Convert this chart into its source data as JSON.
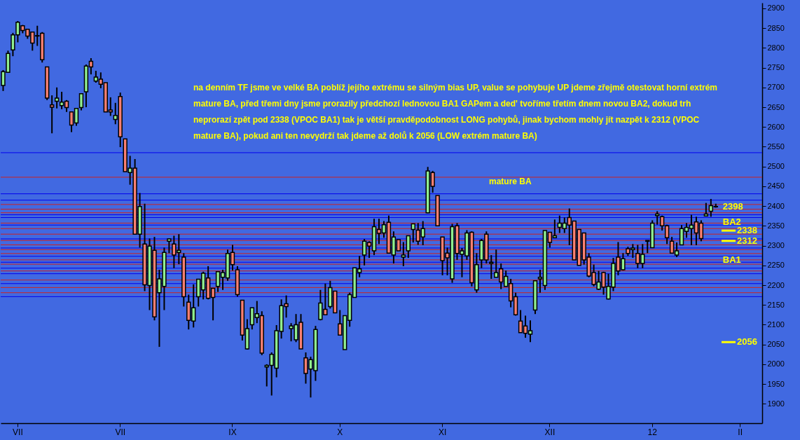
{
  "chart_data": {
    "type": "candlestick",
    "categories": [
      null,
      null,
      null,
      "VII",
      null,
      null,
      null,
      null,
      null,
      null,
      null,
      null,
      null,
      null,
      null,
      null,
      null,
      null,
      null,
      null,
      null,
      null,
      null,
      null,
      "VII",
      null,
      null,
      null,
      null,
      null,
      null,
      null,
      null,
      null,
      null,
      null,
      null,
      null,
      null,
      null,
      null,
      null,
      null,
      null,
      null,
      null,
      null,
      "IX",
      null,
      null,
      null,
      null,
      null,
      null,
      null,
      null,
      null,
      null,
      null,
      null,
      null,
      null,
      null,
      null,
      null,
      null,
      null,
      null,
      null,
      "X",
      null,
      null,
      null,
      null,
      null,
      null,
      null,
      null,
      null,
      null,
      null,
      null,
      null,
      null,
      null,
      null,
      null,
      null,
      null,
      null,
      "XI",
      null,
      null,
      null,
      null,
      null,
      null,
      null,
      null,
      null,
      null,
      null,
      null,
      null,
      null,
      null,
      null,
      null,
      null,
      null,
      null,
      null,
      "XII",
      null,
      null,
      null,
      null,
      null,
      null,
      null,
      null,
      null,
      null,
      null,
      null,
      null,
      null,
      null,
      null,
      null,
      null,
      null,
      null,
      "12",
      null,
      null,
      null,
      null,
      null,
      null,
      null,
      null,
      null,
      null,
      null,
      null,
      null,
      null,
      null,
      null,
      null,
      "II",
      null,
      null,
      null,
      null
    ],
    "ohlc": [
      [
        2705,
        2744,
        2691,
        2740
      ],
      [
        2738,
        2793,
        2738,
        2786
      ],
      [
        2795,
        2838,
        2779,
        2833
      ],
      [
        2833,
        2868,
        2814,
        2865
      ],
      [
        2856,
        2858,
        2837,
        2844
      ],
      [
        2847,
        2847,
        2823,
        2830
      ],
      [
        2840,
        2840,
        2793,
        2812
      ],
      [
        2831,
        2856,
        2805,
        2830
      ],
      [
        2837,
        2840,
        2763,
        2770
      ],
      [
        2752,
        2752,
        2668,
        2673
      ],
      [
        2656,
        2680,
        2584,
        2650
      ],
      [
        2665,
        2700,
        2647,
        2673
      ],
      [
        2654,
        2689,
        2645,
        2663
      ],
      [
        2665,
        2668,
        2638,
        2649
      ],
      [
        2638,
        2638,
        2587,
        2605
      ],
      [
        2610,
        2647,
        2603,
        2647
      ],
      [
        2649,
        2684,
        2642,
        2684
      ],
      [
        2689,
        2758,
        2650,
        2754
      ],
      [
        2766,
        2774,
        2733,
        2752
      ],
      [
        2716,
        2742,
        2712,
        2726
      ],
      [
        2721,
        2738,
        2698,
        2708
      ],
      [
        2712,
        2712,
        2638,
        2638
      ],
      [
        2643,
        2675,
        2628,
        2638
      ],
      [
        2619,
        2661,
        2607,
        2629
      ],
      [
        2677,
        2687,
        2549,
        2575
      ],
      [
        2570,
        2570,
        2487,
        2487
      ],
      [
        2485,
        2527,
        2454,
        2496
      ],
      [
        2496,
        2519,
        2329,
        2329
      ],
      [
        2329,
        2433,
        2295,
        2399
      ],
      [
        2304,
        2406,
        2185,
        2201
      ],
      [
        2199,
        2318,
        2137,
        2299
      ],
      [
        2288,
        2322,
        2111,
        2120
      ],
      [
        2181,
        2239,
        2044,
        2216
      ],
      [
        2197,
        2295,
        2137,
        2283
      ],
      [
        2311,
        2318,
        2281,
        2317
      ],
      [
        2304,
        2325,
        2243,
        2276
      ],
      [
        2283,
        2329,
        2253,
        2288
      ],
      [
        2271,
        2281,
        2146,
        2171
      ],
      [
        2157,
        2176,
        2088,
        2111
      ],
      [
        2109,
        2202,
        2093,
        2143
      ],
      [
        2171,
        2215,
        2146,
        2215
      ],
      [
        2188,
        2234,
        2164,
        2230
      ],
      [
        2218,
        2248,
        2164,
        2167
      ],
      [
        2192,
        2192,
        2111,
        2169
      ],
      [
        2197,
        2234,
        2183,
        2234
      ],
      [
        2220,
        2239,
        2188,
        2232
      ],
      [
        2218,
        2290,
        2211,
        2280
      ],
      [
        2283,
        2302,
        2237,
        2252
      ],
      [
        2239,
        2248,
        2171,
        2176
      ],
      [
        2162,
        2162,
        2060,
        2074
      ],
      [
        2039,
        2114,
        2037,
        2090
      ],
      [
        2100,
        2143,
        2088,
        2143
      ],
      [
        2118,
        2160,
        2104,
        2128
      ],
      [
        2123,
        2134,
        2023,
        2028
      ],
      [
        1993,
        2000,
        1944,
        1997
      ],
      [
        1997,
        2030,
        1921,
        2025
      ],
      [
        1990,
        2099,
        1967,
        2085
      ],
      [
        2083,
        2164,
        2065,
        2148
      ],
      [
        2153,
        2174,
        2118,
        2146
      ],
      [
        2090,
        2104,
        2058,
        2097
      ],
      [
        2062,
        2127,
        2056,
        2100
      ],
      [
        2106,
        2127,
        2039,
        2039
      ],
      [
        2016,
        2030,
        1951,
        1977
      ],
      [
        1988,
        2019,
        1916,
        2012
      ],
      [
        1984,
        2097,
        1958,
        2088
      ],
      [
        2113,
        2188,
        2111,
        2155
      ],
      [
        2139,
        2204,
        2125,
        2125
      ],
      [
        2146,
        2211,
        2141,
        2194
      ],
      [
        2185,
        2185,
        2130,
        2130
      ],
      [
        2102,
        2137,
        2074,
        2074
      ],
      [
        2037,
        2123,
        2037,
        2123
      ],
      [
        2111,
        2181,
        2095,
        2176
      ],
      [
        2169,
        2244,
        2169,
        2244
      ],
      [
        2232,
        2274,
        2220,
        2241
      ],
      [
        2276,
        2317,
        2250,
        2311
      ],
      [
        2308,
        2311,
        2269,
        2299
      ],
      [
        2287,
        2368,
        2276,
        2348
      ],
      [
        2341,
        2368,
        2304,
        2331
      ],
      [
        2332,
        2362,
        2320,
        2353
      ],
      [
        2359,
        2376,
        2281,
        2281
      ],
      [
        2276,
        2336,
        2255,
        2322
      ],
      [
        2315,
        2315,
        2287,
        2287
      ],
      [
        2271,
        2309,
        2248,
        2276
      ],
      [
        2287,
        2325,
        2269,
        2325
      ],
      [
        2341,
        2355,
        2308,
        2355
      ],
      [
        2339,
        2357,
        2302,
        2311
      ],
      [
        2322,
        2362,
        2301,
        2343
      ],
      [
        2383,
        2499,
        2382,
        2489
      ],
      [
        2485,
        2489,
        2434,
        2450
      ],
      [
        2427,
        2427,
        2350,
        2350
      ],
      [
        2322,
        2322,
        2225,
        2262
      ],
      [
        2281,
        2295,
        2225,
        2269
      ],
      [
        2216,
        2355,
        2206,
        2348
      ],
      [
        2350,
        2357,
        2264,
        2280
      ],
      [
        2278,
        2294,
        2220,
        2287
      ],
      [
        2274,
        2339,
        2264,
        2332
      ],
      [
        2334,
        2336,
        2197,
        2206
      ],
      [
        2188,
        2281,
        2181,
        2252
      ],
      [
        2264,
        2317,
        2243,
        2313
      ],
      [
        2329,
        2336,
        2255,
        2264
      ],
      [
        2255,
        2276,
        2216,
        2258
      ],
      [
        2220,
        2290,
        2220,
        2232
      ],
      [
        2241,
        2255,
        2190,
        2208
      ],
      [
        2197,
        2237,
        2197,
        2222
      ],
      [
        2204,
        2216,
        2144,
        2160
      ],
      [
        2171,
        2181,
        2123,
        2125
      ],
      [
        2109,
        2137,
        2080,
        2080
      ],
      [
        2097,
        2123,
        2067,
        2078
      ],
      [
        2076,
        2111,
        2056,
        2085
      ],
      [
        2137,
        2211,
        2127,
        2211
      ],
      [
        2216,
        2239,
        2181,
        2220
      ],
      [
        2199,
        2338,
        2188,
        2338
      ],
      [
        2334,
        2334,
        2295,
        2308
      ],
      [
        2320,
        2366,
        2320,
        2325
      ],
      [
        2346,
        2376,
        2332,
        2357
      ],
      [
        2343,
        2371,
        2332,
        2357
      ],
      [
        2371,
        2394,
        2301,
        2352
      ],
      [
        2362,
        2362,
        2264,
        2264
      ],
      [
        2341,
        2341,
        2250,
        2250
      ],
      [
        2332,
        2332,
        2252,
        2264
      ],
      [
        2271,
        2281,
        2220,
        2223
      ],
      [
        2232,
        2252,
        2197,
        2202
      ],
      [
        2190,
        2236,
        2188,
        2208
      ],
      [
        2232,
        2234,
        2176,
        2195
      ],
      [
        2165,
        2229,
        2164,
        2197
      ],
      [
        2195,
        2269,
        2185,
        2255
      ],
      [
        2271,
        2309,
        2225,
        2236
      ],
      [
        2239,
        2281,
        2237,
        2267
      ],
      [
        2292,
        2297,
        2274,
        2280
      ],
      [
        2290,
        2304,
        2269,
        2294
      ],
      [
        2280,
        2302,
        2243,
        2255
      ],
      [
        2255,
        2304,
        2243,
        2278
      ],
      [
        2311,
        2313,
        2281,
        2313
      ],
      [
        2295,
        2364,
        2294,
        2357
      ],
      [
        2376,
        2387,
        2353,
        2380
      ],
      [
        2373,
        2376,
        2338,
        2350
      ],
      [
        2350,
        2353,
        2304,
        2320
      ],
      [
        2311,
        2322,
        2281,
        2281
      ],
      [
        2276,
        2308,
        2271,
        2287
      ],
      [
        2302,
        2352,
        2301,
        2343
      ],
      [
        2336,
        2357,
        2320,
        2346
      ],
      [
        2343,
        2378,
        2301,
        2352
      ],
      [
        2360,
        2373,
        2301,
        2332
      ],
      [
        2357,
        2364,
        2311,
        2318
      ],
      [
        2375,
        2408,
        2375,
        2380
      ],
      [
        2387,
        2418,
        2373,
        2401
      ],
      [
        2399,
        2406,
        2396,
        2398
      ],
      null,
      null,
      null,
      null,
      null,
      null,
      null,
      null,
      null
    ],
    "colors": [
      "#90ee90",
      "#90ee90",
      "#90ee90",
      "#90ee90",
      "#fa8072",
      "#fa8072",
      "#fa8072",
      "#fa8072",
      "#fa8072",
      "#fa8072",
      "#fa8072",
      "#90ee90",
      "#90ee90",
      "#fa8072",
      "#fa8072",
      "#90ee90",
      "#90ee90",
      "#90ee90",
      "#fa8072",
      "#90ee90",
      "#fa8072",
      "#fa8072",
      "#fa8072",
      "#90ee90",
      "#fa8072",
      "#fa8072",
      "#90ee90",
      "#fa8072",
      "#90ee90",
      "#fa8072",
      "#90ee90",
      "#fa8072",
      "#90ee90",
      "#90ee90",
      "#90ee90",
      "#fa8072",
      "#90ee90",
      "#fa8072",
      "#fa8072",
      "#90ee90",
      "#90ee90",
      "#90ee90",
      "#fa8072",
      "#fa8072",
      "#90ee90",
      "#90ee90",
      "#90ee90",
      "#fa8072",
      "#fa8072",
      "#fa8072",
      "#90ee90",
      "#90ee90",
      "#90ee90",
      "#fa8072",
      "#90ee90",
      "#90ee90",
      "#90ee90",
      "#90ee90",
      "#fa8072",
      "#90ee90",
      "#90ee90",
      "#fa8072",
      "#fa8072",
      "#90ee90",
      "#90ee90",
      "#90ee90",
      "#fa8072",
      "#90ee90",
      "#fa8072",
      "#fa8072",
      "#90ee90",
      "#90ee90",
      "#90ee90",
      "#90ee90",
      "#90ee90",
      "#fa8072",
      "#90ee90",
      "#fa8072",
      "#90ee90",
      "#fa8072",
      "#90ee90",
      "#fa8072",
      "#90ee90",
      "#90ee90",
      "#90ee90",
      "#fa8072",
      "#90ee90",
      "#90ee90",
      "#fa8072",
      "#fa8072",
      "#fa8072",
      "#fa8072",
      "#90ee90",
      "#fa8072",
      "#90ee90",
      "#90ee90",
      "#fa8072",
      "#90ee90",
      "#90ee90",
      "#fa8072",
      "#90ee90",
      "#90ee90",
      "#fa8072",
      "#90ee90",
      "#fa8072",
      "#fa8072",
      "#fa8072",
      "#fa8072",
      "#90ee90",
      "#90ee90",
      "#90ee90",
      "#90ee90",
      "#fa8072",
      "#90ee90",
      "#90ee90",
      "#90ee90",
      "#fa8072",
      "#fa8072",
      "#fa8072",
      "#fa8072",
      "#fa8072",
      "#fa8072",
      "#90ee90",
      "#fa8072",
      "#90ee90",
      "#90ee90",
      "#fa8072",
      "#90ee90",
      "#fa8072",
      "#90ee90",
      "#fa8072",
      "#90ee90",
      "#90ee90",
      "#90ee90",
      "#90ee90",
      "#fa8072",
      "#fa8072",
      "#fa8072",
      "#90ee90",
      "#90ee90",
      "#90ee90",
      "#90ee90",
      "#fa8072",
      "#fa8072",
      "#90ee90",
      "#90ee90",
      "#fa8072",
      null,
      null,
      null,
      null,
      null,
      null,
      null,
      null,
      null
    ],
    "ylim": [
      1851,
      2914
    ],
    "yticks": [
      1900,
      1950,
      2000,
      2050,
      2100,
      2150,
      2200,
      2250,
      2300,
      2350,
      2400,
      2450,
      2500,
      2550,
      2600,
      2650,
      2700,
      2750,
      2800,
      2850,
      2900
    ],
    "ref_lines": [
      {
        "axis": "y",
        "value": 2535,
        "color": "#0000ee"
      },
      {
        "axis": "y",
        "value": 2473,
        "color": "#cc2222"
      },
      {
        "axis": "y",
        "value": 2431,
        "color": "#0000ee"
      },
      {
        "axis": "y",
        "value": 2415,
        "color": "#0000ee"
      },
      {
        "axis": "y",
        "value": 2404,
        "color": "#cc2222"
      },
      {
        "axis": "y",
        "value": 2392,
        "color": "#cc2222"
      },
      {
        "axis": "y",
        "value": 2383,
        "color": "#cc2222"
      },
      {
        "axis": "y",
        "value": 2378,
        "color": "#0000ee"
      },
      {
        "axis": "y",
        "value": 2371,
        "color": "#0000ee"
      },
      {
        "axis": "y",
        "value": 2357,
        "color": "#cc2222"
      },
      {
        "axis": "y",
        "value": 2352,
        "color": "#0000ee"
      },
      {
        "axis": "y",
        "value": 2343,
        "color": "#cc2222"
      },
      {
        "axis": "y",
        "value": 2329,
        "color": "#cc2222"
      },
      {
        "axis": "y",
        "value": 2317,
        "color": "#0000ee"
      },
      {
        "axis": "y",
        "value": 2313,
        "color": "#cc2222"
      },
      {
        "axis": "y",
        "value": 2302,
        "color": "#cc2222"
      },
      {
        "axis": "y",
        "value": 2294,
        "color": "#0000ee"
      },
      {
        "axis": "y",
        "value": 2290,
        "color": "#cc2222"
      },
      {
        "axis": "y",
        "value": 2280,
        "color": "#cc2222"
      },
      {
        "axis": "y",
        "value": 2273,
        "color": "#0000ee"
      },
      {
        "axis": "y",
        "value": 2264,
        "color": "#cc2222"
      },
      {
        "axis": "y",
        "value": 2258,
        "color": "#0000ee"
      },
      {
        "axis": "y",
        "value": 2253,
        "color": "#cc2222"
      },
      {
        "axis": "y",
        "value": 2243,
        "color": "#0000ee"
      },
      {
        "axis": "y",
        "value": 2236,
        "color": "#cc2222"
      },
      {
        "axis": "y",
        "value": 2229,
        "color": "#0000ee"
      },
      {
        "axis": "y",
        "value": 2213,
        "color": "#cc2222"
      },
      {
        "axis": "y",
        "value": 2204,
        "color": "#0000ee"
      },
      {
        "axis": "y",
        "value": 2194,
        "color": "#cc2222"
      },
      {
        "axis": "y",
        "value": 2181,
        "color": "#cc2222"
      },
      {
        "axis": "y",
        "value": 2171,
        "color": "#0000ee"
      },
      {
        "axis": "y",
        "value": 2338,
        "label": "2338",
        "color": "#ffff00"
      },
      {
        "axis": "y",
        "value": 2312,
        "label": "2312",
        "color": "#ffff00"
      },
      {
        "axis": "y",
        "value": 2056,
        "label": "2056",
        "color": "#ffff00"
      }
    ],
    "annotations": [
      "na denním TF jsme ve velké BA poblíž jejího extrému se silným bias UP, value se pohybuje UP jdeme zřejmě otestovat horní extrém mature BA, před třemi dny jsme prorazily předchozí lednovou BA1 GAPem a ded' tvoříme třetím dnem novou BA2, dokud trh neprorazí zpět pod 2338 (VPOC BA1) tak je větší pravděpodobnost LONG pohybů, jinak bychom mohly jít nazpět k 2312 (VPOC mature BA), pokud ani ten nevydrží tak jdeme až dolů k 2056 (LOW extrém mature BA)",
      "mature BA",
      {
        "text": "2398",
        "y": 2398
      },
      {
        "text": "BA2",
        "y": 2360
      },
      {
        "text": "BA1",
        "y": 2264
      }
    ]
  }
}
